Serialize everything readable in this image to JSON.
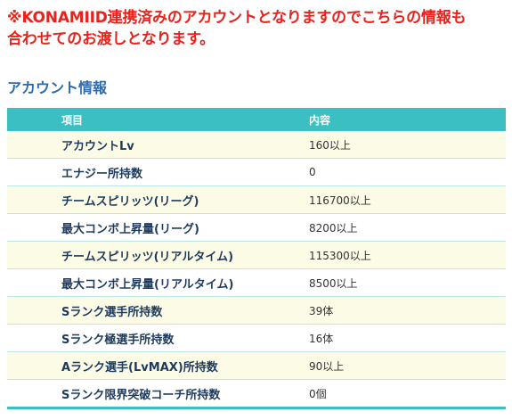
{
  "notice": {
    "line1": "※KONAMIID連携済みのアカウントとなりますのでこちらの情報も",
    "line2": "合わせてのお渡しとなります。"
  },
  "section": {
    "title": "アカウント情報"
  },
  "table": {
    "headers": {
      "item": "項目",
      "value": "内容"
    },
    "rows": [
      {
        "item": "アカウントLv",
        "value": "160以上"
      },
      {
        "item": "エナジー所持数",
        "value": "0"
      },
      {
        "item": "チームスピリッツ(リーグ)",
        "value": "116700以上"
      },
      {
        "item": "最大コンボ上昇量(リーグ)",
        "value": "8200以上"
      },
      {
        "item": "チームスピリッツ(リアルタイム)",
        "value": "115300以上"
      },
      {
        "item": "最大コンボ上昇量(リアルタイム)",
        "value": "8500以上"
      },
      {
        "item": "Sランク選手所持数",
        "value": "39体"
      },
      {
        "item": "Sランク極選手所持数",
        "value": "16体"
      },
      {
        "item": "Aランク選手(LvMAX)所持数",
        "value": "90以上"
      },
      {
        "item": "Sランク限界突破コーチ所持数",
        "value": "0個"
      }
    ]
  },
  "colors": {
    "notice": "#e8231b",
    "title": "#2b6cb0",
    "header_bg": "#3bbfc2",
    "row_odd_bg": "#fcfbe6"
  }
}
